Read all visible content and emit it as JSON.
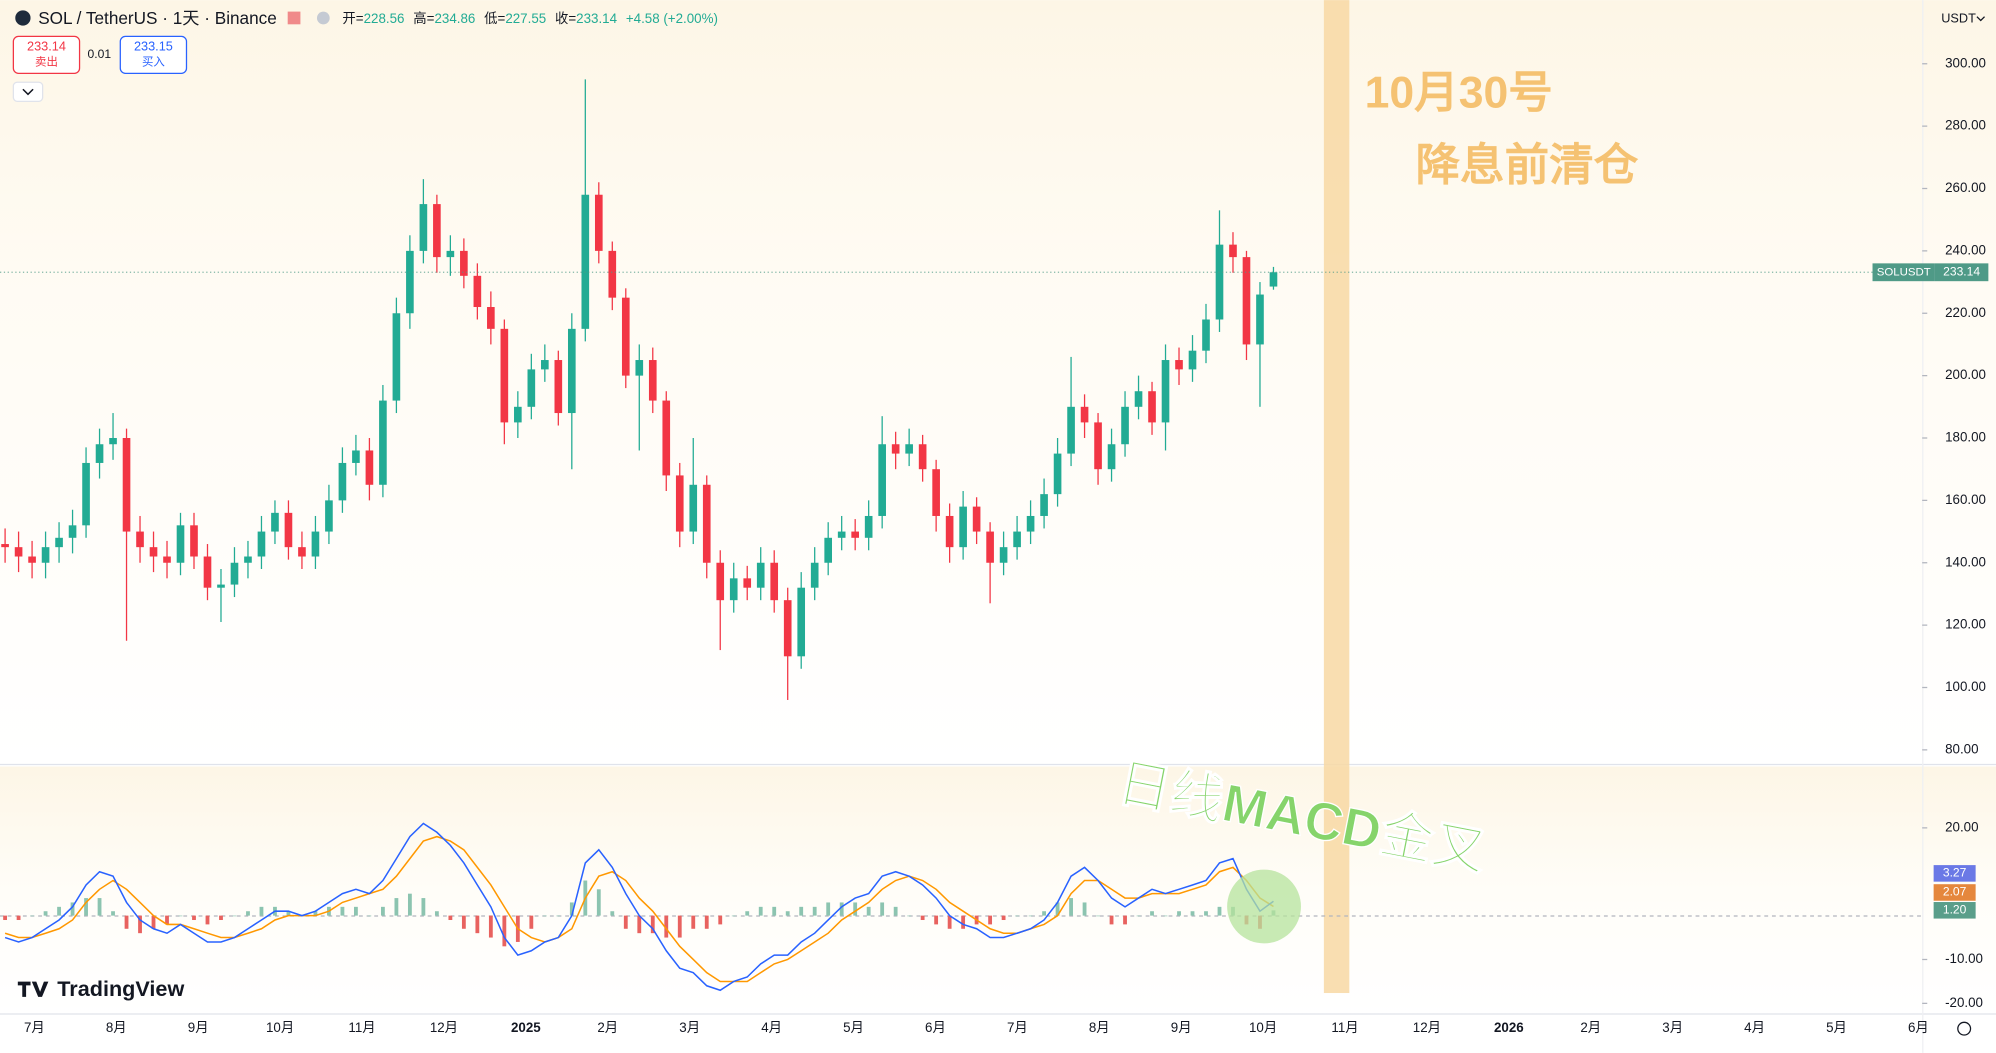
{
  "toolbar": {
    "symbol": "SOL / TetherUS · 1天 · Binance",
    "ohlc_labels": [
      "开=",
      "高=",
      "低=",
      "收="
    ],
    "change": "+4.58 (+2.00%)",
    "sell_price": 233.14,
    "sell_label": "卖出",
    "spread": 0.01,
    "buy_price": 233.15,
    "buy_label": "买入",
    "currency": "USDT"
  },
  "branding": "TradingView",
  "chart_data": [
    {
      "type": "candlestick",
      "symbol_label": "SOLUSDT",
      "annotations": [
        "10月30号",
        "降息前清仓",
        "日线MACD金叉"
      ],
      "x_labels": [
        "7月",
        "8月",
        "9月",
        "10月",
        "11月",
        "12月",
        "2025",
        "2月",
        "3月",
        "4月",
        "5月",
        "6月",
        "7月",
        "8月",
        "9月",
        "10月",
        "11月",
        "12月",
        "2026",
        "2月",
        "3月",
        "4月",
        "5月",
        "6月"
      ],
      "open": [
        146,
        145,
        142,
        140,
        145,
        148,
        152,
        172,
        178,
        180,
        150,
        145,
        142,
        140,
        152,
        142,
        132,
        133,
        140,
        142,
        150,
        156,
        145,
        142,
        150,
        160,
        172,
        176,
        165,
        192,
        220,
        240,
        255,
        238,
        240,
        232,
        222,
        215,
        185,
        190,
        202,
        205,
        188,
        215,
        258,
        240,
        225,
        200,
        205,
        192,
        168,
        150,
        165,
        140,
        128,
        135,
        132,
        140,
        128,
        110,
        132,
        140,
        148,
        150,
        148,
        155,
        178,
        175,
        178,
        170,
        155,
        145,
        158,
        150,
        140,
        145,
        150,
        155,
        162,
        175,
        190,
        185,
        170,
        178,
        190,
        195,
        185,
        205,
        202,
        208,
        218,
        242,
        238,
        210,
        228.56
      ],
      "high": [
        151,
        150,
        147,
        150,
        153,
        157,
        177,
        183,
        188,
        183,
        155,
        150,
        147,
        156,
        156,
        146,
        138,
        145,
        147,
        155,
        160,
        160,
        150,
        155,
        165,
        177,
        181,
        180,
        197,
        225,
        245,
        263,
        258,
        245,
        244,
        236,
        227,
        218,
        195,
        207,
        210,
        208,
        220,
        295,
        262,
        243,
        228,
        210,
        209,
        195,
        172,
        180,
        168,
        144,
        140,
        139,
        145,
        144,
        132,
        137,
        145,
        153,
        155,
        154,
        160,
        187,
        182,
        183,
        181,
        173,
        159,
        163,
        161,
        153,
        150,
        155,
        160,
        167,
        180,
        206,
        194,
        188,
        183,
        195,
        200,
        198,
        210,
        209,
        213,
        223,
        253,
        246,
        240,
        230,
        234.86
      ],
      "low": [
        140,
        137,
        135,
        135,
        140,
        143,
        148,
        167,
        173,
        115,
        140,
        137,
        135,
        136,
        138,
        128,
        121,
        129,
        135,
        138,
        146,
        141,
        138,
        138,
        146,
        156,
        168,
        160,
        161,
        188,
        215,
        236,
        233,
        232,
        228,
        218,
        210,
        178,
        180,
        186,
        198,
        184,
        170,
        211,
        236,
        221,
        196,
        176,
        188,
        163,
        145,
        146,
        135,
        112,
        124,
        128,
        128,
        124,
        96,
        106,
        128,
        136,
        144,
        144,
        144,
        151,
        170,
        171,
        166,
        150,
        140,
        141,
        146,
        127,
        136,
        141,
        146,
        151,
        158,
        171,
        180,
        165,
        166,
        174,
        186,
        181,
        176,
        197,
        198,
        204,
        214,
        233,
        205,
        190,
        227.55
      ],
      "close": [
        145,
        142,
        140,
        145,
        148,
        152,
        172,
        178,
        180,
        150,
        145,
        142,
        140,
        152,
        142,
        132,
        133,
        140,
        142,
        150,
        156,
        145,
        142,
        150,
        160,
        172,
        176,
        165,
        192,
        220,
        240,
        255,
        238,
        240,
        232,
        222,
        215,
        185,
        190,
        202,
        205,
        188,
        215,
        258,
        240,
        225,
        200,
        205,
        192,
        168,
        150,
        165,
        140,
        128,
        135,
        132,
        140,
        128,
        110,
        132,
        140,
        148,
        150,
        148,
        155,
        178,
        175,
        178,
        170,
        155,
        145,
        158,
        150,
        140,
        145,
        150,
        155,
        162,
        175,
        190,
        185,
        170,
        178,
        190,
        195,
        185,
        205,
        202,
        208,
        218,
        242,
        238,
        210,
        226,
        233.14
      ],
      "up_color": "#22ab94",
      "down_color": "#f23645",
      "last_color": "#4f9a87",
      "ylim": [
        75.5,
        320.4
      ],
      "yticks": [
        {
          "value": 80,
          "label": "80.00"
        },
        {
          "value": 100,
          "label": "100.00"
        },
        {
          "value": 120,
          "label": "120.00"
        },
        {
          "value": 140,
          "label": "140.00"
        },
        {
          "value": 160,
          "label": "160.00"
        },
        {
          "value": 180,
          "label": "180.00"
        },
        {
          "value": 200,
          "label": "200.00"
        },
        {
          "value": 220,
          "label": "220.00"
        },
        {
          "value": 240,
          "label": "240.00"
        },
        {
          "value": 260,
          "label": "260.00"
        },
        {
          "value": 280,
          "label": "280.00"
        },
        {
          "value": 300,
          "label": "300.00"
        }
      ],
      "grid": false
    },
    {
      "type": "macd",
      "macd": {
        "color": "#2962ff",
        "badge_color": "#6b79e6",
        "last_label": "3.27",
        "values": [
          -5,
          -6,
          -5,
          -3,
          -1,
          2,
          7,
          10,
          9,
          3,
          -1,
          -3,
          -4,
          -2,
          -4,
          -6,
          -6,
          -5,
          -3,
          -1,
          1,
          1,
          0,
          1,
          3,
          5,
          6,
          5,
          8,
          13,
          18,
          21,
          19,
          16,
          12,
          7,
          2,
          -5,
          -9,
          -8,
          -6,
          -5,
          0,
          12,
          15,
          11,
          5,
          0,
          -3,
          -8,
          -12,
          -13,
          -16,
          -17,
          -15,
          -14,
          -11,
          -9,
          -9,
          -6,
          -4,
          -1,
          2,
          4,
          5,
          9,
          10,
          9,
          7,
          4,
          0,
          -2,
          -3,
          -5,
          -5,
          -4,
          -3,
          -1,
          3,
          9,
          11,
          8,
          4,
          2,
          4,
          6,
          5,
          6,
          7,
          8,
          12,
          13,
          6,
          1,
          3.27
        ]
      },
      "signal": {
        "color": "#ff9800",
        "badge_color": "#e5873d",
        "last_label": "2.07",
        "values": [
          -4,
          -5,
          -5,
          -4,
          -3,
          -1,
          3,
          6,
          8,
          6,
          3,
          0,
          -2,
          -2,
          -3,
          -4,
          -5,
          -5,
          -4,
          -3,
          -1,
          0,
          0,
          0,
          1,
          3,
          4,
          5,
          6,
          9,
          13,
          17,
          18,
          17,
          15,
          11,
          7,
          2,
          -3,
          -5,
          -6,
          -5,
          -3,
          4,
          9,
          10,
          8,
          4,
          1,
          -3,
          -7,
          -10,
          -13,
          -15,
          -15,
          -15,
          -13,
          -11,
          -10,
          -8,
          -6,
          -4,
          -1,
          1,
          3,
          6,
          8,
          9,
          8,
          6,
          3,
          1,
          -1,
          -3,
          -4,
          -4,
          -3,
          -2,
          0,
          5,
          8,
          8,
          6,
          4,
          4,
          5,
          5,
          5,
          6,
          7,
          10,
          11,
          8,
          4,
          2.07
        ]
      },
      "histogram": {
        "color": "#8cc4b0",
        "negative_color": "#e8625f",
        "badge_color": "#5a9e8a",
        "last_label": "1.20",
        "values": [
          -1,
          -1,
          0,
          1,
          2,
          3,
          4,
          4,
          1,
          -3,
          -4,
          -3,
          -2,
          0,
          -1,
          -2,
          -1,
          0,
          1,
          2,
          2,
          1,
          0,
          1,
          2,
          2,
          2,
          0,
          2,
          4,
          5,
          4,
          1,
          -1,
          -3,
          -4,
          -5,
          -7,
          -6,
          -3,
          0,
          0,
          3,
          8,
          6,
          1,
          -3,
          -4,
          -4,
          -5,
          -5,
          -3,
          -3,
          -2,
          0,
          1,
          2,
          2,
          1,
          2,
          2,
          3,
          3,
          3,
          2,
          3,
          2,
          0,
          -1,
          -2,
          -3,
          -3,
          -2,
          -2,
          -1,
          0,
          0,
          1,
          3,
          4,
          3,
          0,
          -2,
          -2,
          0,
          1,
          0,
          1,
          1,
          1,
          2,
          2,
          -2,
          -3,
          1.2
        ]
      },
      "ylim": [
        -22,
        34
      ],
      "yticks": [
        {
          "value": -20,
          "label": "-20.00"
        },
        {
          "value": -10,
          "label": "-10.00"
        },
        {
          "value": 20,
          "label": "20.00"
        }
      ],
      "grid": false
    }
  ]
}
